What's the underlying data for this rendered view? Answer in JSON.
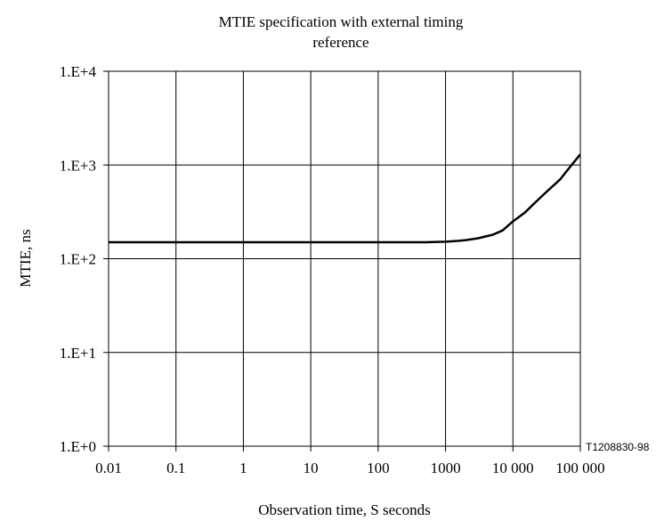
{
  "chart_data": {
    "type": "line",
    "title_line1": "MTIE specification with external timing",
    "title_line2": "reference",
    "xlabel": "Observation time, S seconds",
    "ylabel": "MTIE, ns",
    "x_scale": "log",
    "y_scale": "log",
    "xlim": [
      0.01,
      100000
    ],
    "ylim": [
      1,
      10000
    ],
    "x_ticks": [
      0.01,
      0.1,
      1,
      10,
      100,
      1000,
      10000,
      100000
    ],
    "x_tick_labels": [
      "0.01",
      "0.1",
      "1",
      "10",
      "100",
      "1000",
      "10 000",
      "100 000"
    ],
    "y_ticks": [
      1,
      10,
      100,
      1000,
      10000
    ],
    "y_tick_labels": [
      "1.E+0",
      "1.E+1",
      "1.E+2",
      "1.E+3",
      "1.E+4"
    ],
    "grid": true,
    "figure_id": "T1208830-98",
    "series": [
      {
        "x": [
          0.01,
          0.1,
          1,
          10,
          100,
          500,
          1000,
          1500,
          2000,
          3000,
          5000,
          7000,
          10000,
          15000,
          20000,
          30000,
          50000,
          70000,
          100000
        ],
        "y": [
          150,
          150,
          150,
          150,
          150,
          150,
          152,
          155,
          158,
          165,
          180,
          200,
          250,
          310,
          380,
          500,
          700,
          950,
          1300
        ]
      }
    ]
  }
}
